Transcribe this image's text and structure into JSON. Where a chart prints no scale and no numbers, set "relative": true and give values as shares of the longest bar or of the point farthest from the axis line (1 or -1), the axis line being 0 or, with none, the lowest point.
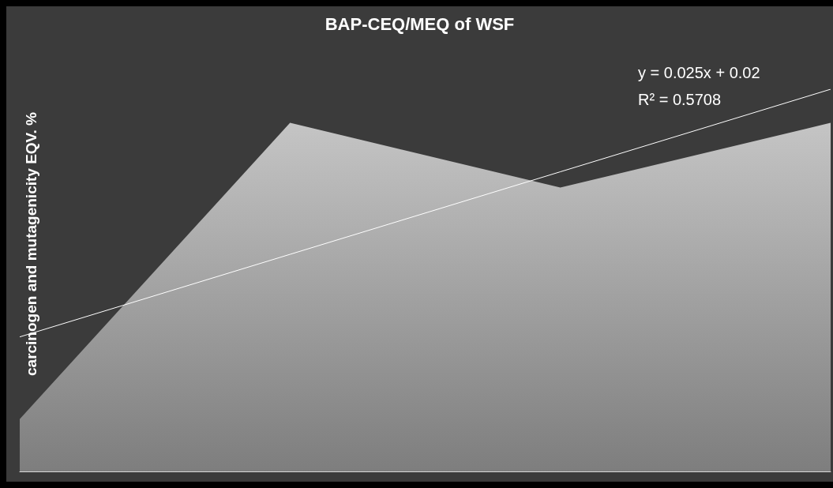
{
  "chart_data": {
    "type": "area",
    "title": "BAP-CEQ/MEQ of WSF",
    "ylabel": "carcinogen and mutagenicity EQV. %",
    "relative": true,
    "categories": [
      null,
      null,
      null,
      null
    ],
    "series": [
      {
        "type": "area",
        "color": "#ffffff",
        "values": [
          0.137,
          0.912,
          0.743,
          0.912
        ]
      },
      {
        "type": "line",
        "color": "#ffffff",
        "values": [
          0.352,
          0.568,
          0.784,
          1.0
        ]
      }
    ],
    "annotations": [
      "y = 0.025x + 0.02",
      "R² = 0.5708"
    ],
    "grid": false,
    "marker": "none"
  }
}
